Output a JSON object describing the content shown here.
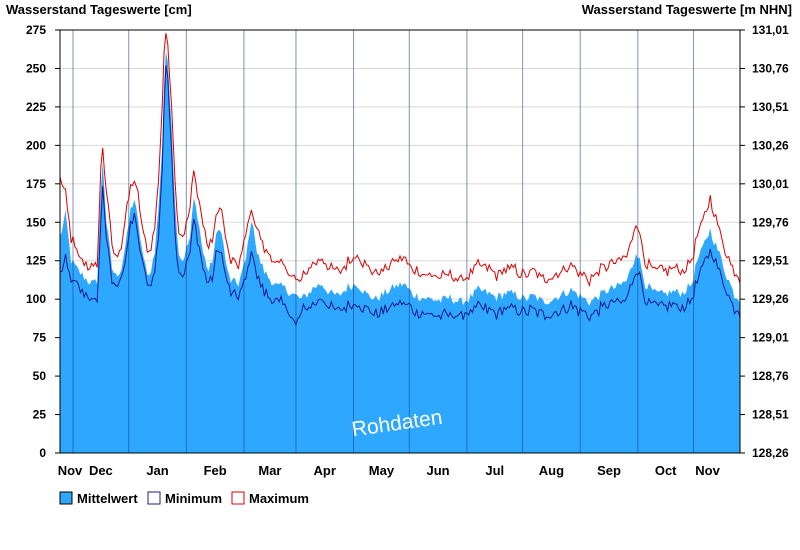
{
  "chart_data": {
    "type": "area",
    "left_axis_title": "Wasserstand Tageswerte [cm]",
    "right_axis_title": "Wasserstand Tageswerte [m NHN]",
    "ylim": [
      0,
      275
    ],
    "y_ticks": [
      0,
      25,
      50,
      75,
      100,
      125,
      150,
      175,
      200,
      225,
      250,
      275
    ],
    "right_ticks": [
      "128,26",
      "128,51",
      "128,76",
      "129,01",
      "129,26",
      "129,51",
      "129,76",
      "130,01",
      "130,26",
      "130,51",
      "130,76",
      "131,01"
    ],
    "months": [
      "Nov",
      "Dec",
      "Jan",
      "Feb",
      "Mar",
      "Apr",
      "May",
      "Jun",
      "Jul",
      "Aug",
      "Sep",
      "Oct",
      "Nov"
    ],
    "x_unit": "day",
    "x_range": [
      0,
      366
    ],
    "watermark": "Rohdaten",
    "grid": true,
    "legend_position": "bottom-left",
    "legend": [
      {
        "key": "mean",
        "label": "Mittelwert",
        "color": "#2ea8ff"
      },
      {
        "key": "min",
        "label": "Minimum",
        "color": "#1a1a8c"
      },
      {
        "key": "max",
        "label": "Maximum",
        "color": "#dd0000"
      }
    ],
    "series_keypoints": {
      "mean": [
        [
          0,
          140
        ],
        [
          3,
          155
        ],
        [
          6,
          125
        ],
        [
          10,
          118
        ],
        [
          15,
          112
        ],
        [
          18,
          110
        ],
        [
          20,
          112
        ],
        [
          22,
          170
        ],
        [
          23,
          190
        ],
        [
          25,
          150
        ],
        [
          28,
          120
        ],
        [
          30,
          115
        ],
        [
          33,
          120
        ],
        [
          36,
          140
        ],
        [
          38,
          158
        ],
        [
          40,
          165
        ],
        [
          42,
          150
        ],
        [
          45,
          125
        ],
        [
          48,
          115
        ],
        [
          51,
          130
        ],
        [
          53,
          160
        ],
        [
          55,
          200
        ],
        [
          56,
          240
        ],
        [
          57,
          258
        ],
        [
          58,
          255
        ],
        [
          60,
          215
        ],
        [
          62,
          160
        ],
        [
          64,
          130
        ],
        [
          66,
          125
        ],
        [
          70,
          140
        ],
        [
          72,
          165
        ],
        [
          74,
          155
        ],
        [
          77,
          130
        ],
        [
          80,
          118
        ],
        [
          82,
          125
        ],
        [
          84,
          140
        ],
        [
          86,
          148
        ],
        [
          88,
          135
        ],
        [
          90,
          118
        ],
        [
          92,
          112
        ],
        [
          96,
          110
        ],
        [
          100,
          125
        ],
        [
          102,
          145
        ],
        [
          104,
          150
        ],
        [
          106,
          130
        ],
        [
          110,
          118
        ],
        [
          113,
          113
        ],
        [
          117,
          108
        ],
        [
          120,
          108
        ],
        [
          123,
          105
        ],
        [
          127,
          102
        ],
        [
          130,
          100
        ],
        [
          133,
          103
        ],
        [
          137,
          108
        ],
        [
          141,
          110
        ],
        [
          145,
          104
        ],
        [
          150,
          102
        ],
        [
          155,
          108
        ],
        [
          160,
          110
        ],
        [
          165,
          103
        ],
        [
          170,
          100
        ],
        [
          175,
          104
        ],
        [
          180,
          108
        ],
        [
          185,
          110
        ],
        [
          190,
          103
        ],
        [
          195,
          101
        ],
        [
          200,
          100
        ],
        [
          205,
          99
        ],
        [
          210,
          101
        ],
        [
          215,
          98
        ],
        [
          220,
          100
        ],
        [
          225,
          106
        ],
        [
          230,
          104
        ],
        [
          235,
          101
        ],
        [
          240,
          104
        ],
        [
          245,
          103
        ],
        [
          250,
          100
        ],
        [
          255,
          102
        ],
        [
          260,
          98
        ],
        [
          265,
          100
        ],
        [
          270,
          103
        ],
        [
          275,
          106
        ],
        [
          280,
          102
        ],
        [
          285,
          98
        ],
        [
          290,
          102
        ],
        [
          295,
          106
        ],
        [
          300,
          108
        ],
        [
          305,
          112
        ],
        [
          309,
          125
        ],
        [
          310,
          132
        ],
        [
          312,
          125
        ],
        [
          315,
          110
        ],
        [
          320,
          104
        ],
        [
          325,
          103
        ],
        [
          330,
          105
        ],
        [
          335,
          104
        ],
        [
          340,
          110
        ],
        [
          343,
          125
        ],
        [
          345,
          130
        ],
        [
          348,
          140
        ],
        [
          350,
          145
        ],
        [
          352,
          138
        ],
        [
          354,
          132
        ],
        [
          356,
          126
        ],
        [
          358,
          118
        ],
        [
          360,
          112
        ],
        [
          363,
          103
        ],
        [
          366,
          100
        ]
      ],
      "min": [
        [
          0,
          118
        ],
        [
          3,
          125
        ],
        [
          6,
          112
        ],
        [
          10,
          108
        ],
        [
          15,
          102
        ],
        [
          18,
          98
        ],
        [
          20,
          100
        ],
        [
          22,
          150
        ],
        [
          23,
          175
        ],
        [
          25,
          140
        ],
        [
          28,
          112
        ],
        [
          30,
          108
        ],
        [
          33,
          115
        ],
        [
          36,
          130
        ],
        [
          38,
          148
        ],
        [
          40,
          155
        ],
        [
          42,
          140
        ],
        [
          45,
          120
        ],
        [
          48,
          108
        ],
        [
          51,
          118
        ],
        [
          53,
          140
        ],
        [
          55,
          185
        ],
        [
          56,
          225
        ],
        [
          57,
          250
        ],
        [
          58,
          245
        ],
        [
          60,
          200
        ],
        [
          62,
          140
        ],
        [
          64,
          118
        ],
        [
          66,
          115
        ],
        [
          70,
          130
        ],
        [
          72,
          150
        ],
        [
          74,
          140
        ],
        [
          77,
          120
        ],
        [
          80,
          110
        ],
        [
          82,
          115
        ],
        [
          84,
          128
        ],
        [
          86,
          135
        ],
        [
          88,
          122
        ],
        [
          90,
          110
        ],
        [
          92,
          104
        ],
        [
          96,
          102
        ],
        [
          100,
          112
        ],
        [
          102,
          125
        ],
        [
          104,
          130
        ],
        [
          106,
          115
        ],
        [
          110,
          105
        ],
        [
          113,
          100
        ],
        [
          117,
          98
        ],
        [
          120,
          97
        ],
        [
          123,
          94
        ],
        [
          127,
          82
        ],
        [
          130,
          92
        ],
        [
          133,
          95
        ],
        [
          137,
          98
        ],
        [
          141,
          100
        ],
        [
          145,
          95
        ],
        [
          150,
          92
        ],
        [
          155,
          96
        ],
        [
          160,
          98
        ],
        [
          165,
          93
        ],
        [
          170,
          90
        ],
        [
          175,
          93
        ],
        [
          180,
          96
        ],
        [
          185,
          97
        ],
        [
          190,
          93
        ],
        [
          195,
          91
        ],
        [
          200,
          90
        ],
        [
          205,
          89
        ],
        [
          210,
          90
        ],
        [
          215,
          89
        ],
        [
          220,
          91
        ],
        [
          225,
          94
        ],
        [
          230,
          93
        ],
        [
          235,
          90
        ],
        [
          240,
          94
        ],
        [
          245,
          93
        ],
        [
          250,
          91
        ],
        [
          255,
          93
        ],
        [
          260,
          89
        ],
        [
          265,
          91
        ],
        [
          270,
          93
        ],
        [
          275,
          96
        ],
        [
          280,
          92
        ],
        [
          285,
          89
        ],
        [
          290,
          93
        ],
        [
          295,
          96
        ],
        [
          300,
          98
        ],
        [
          305,
          100
        ],
        [
          309,
          115
        ],
        [
          310,
          120
        ],
        [
          312,
          115
        ],
        [
          315,
          100
        ],
        [
          320,
          95
        ],
        [
          325,
          94
        ],
        [
          330,
          96
        ],
        [
          335,
          95
        ],
        [
          340,
          100
        ],
        [
          343,
          112
        ],
        [
          345,
          118
        ],
        [
          348,
          128
        ],
        [
          350,
          132
        ],
        [
          352,
          128
        ],
        [
          354,
          120
        ],
        [
          356,
          115
        ],
        [
          358,
          108
        ],
        [
          360,
          102
        ],
        [
          363,
          94
        ],
        [
          366,
          92
        ]
      ],
      "max": [
        [
          0,
          178
        ],
        [
          3,
          168
        ],
        [
          6,
          140
        ],
        [
          10,
          128
        ],
        [
          15,
          122
        ],
        [
          18,
          120
        ],
        [
          20,
          122
        ],
        [
          22,
          185
        ],
        [
          23,
          199
        ],
        [
          25,
          170
        ],
        [
          28,
          135
        ],
        [
          30,
          128
        ],
        [
          33,
          135
        ],
        [
          36,
          158
        ],
        [
          38,
          172
        ],
        [
          40,
          177
        ],
        [
          42,
          168
        ],
        [
          45,
          142
        ],
        [
          48,
          130
        ],
        [
          51,
          148
        ],
        [
          53,
          178
        ],
        [
          55,
          225
        ],
        [
          56,
          260
        ],
        [
          57,
          270
        ],
        [
          58,
          266
        ],
        [
          60,
          230
        ],
        [
          62,
          175
        ],
        [
          64,
          145
        ],
        [
          66,
          140
        ],
        [
          70,
          160
        ],
        [
          72,
          183
        ],
        [
          74,
          170
        ],
        [
          77,
          148
        ],
        [
          80,
          133
        ],
        [
          82,
          140
        ],
        [
          84,
          152
        ],
        [
          86,
          162
        ],
        [
          88,
          150
        ],
        [
          90,
          132
        ],
        [
          92,
          125
        ],
        [
          96,
          122
        ],
        [
          100,
          140
        ],
        [
          102,
          157
        ],
        [
          104,
          156
        ],
        [
          106,
          145
        ],
        [
          110,
          133
        ],
        [
          113,
          128
        ],
        [
          117,
          122
        ],
        [
          120,
          122
        ],
        [
          123,
          118
        ],
        [
          127,
          112
        ],
        [
          130,
          113
        ],
        [
          133,
          118
        ],
        [
          137,
          124
        ],
        [
          141,
          128
        ],
        [
          145,
          120
        ],
        [
          150,
          118
        ],
        [
          155,
          124
        ],
        [
          160,
          130
        ],
        [
          165,
          120
        ],
        [
          170,
          116
        ],
        [
          175,
          120
        ],
        [
          180,
          125
        ],
        [
          185,
          126
        ],
        [
          190,
          119
        ],
        [
          195,
          117
        ],
        [
          200,
          115
        ],
        [
          205,
          114
        ],
        [
          210,
          116
        ],
        [
          215,
          113
        ],
        [
          220,
          115
        ],
        [
          225,
          122
        ],
        [
          230,
          120
        ],
        [
          235,
          116
        ],
        [
          240,
          120
        ],
        [
          245,
          119
        ],
        [
          250,
          115
        ],
        [
          255,
          118
        ],
        [
          260,
          113
        ],
        [
          265,
          115
        ],
        [
          270,
          118
        ],
        [
          275,
          122
        ],
        [
          280,
          117
        ],
        [
          285,
          113
        ],
        [
          290,
          118
        ],
        [
          295,
          122
        ],
        [
          300,
          124
        ],
        [
          305,
          128
        ],
        [
          309,
          145
        ],
        [
          310,
          151
        ],
        [
          312,
          142
        ],
        [
          315,
          125
        ],
        [
          320,
          119
        ],
        [
          325,
          118
        ],
        [
          330,
          120
        ],
        [
          335,
          119
        ],
        [
          340,
          125
        ],
        [
          343,
          140
        ],
        [
          345,
          147
        ],
        [
          348,
          158
        ],
        [
          350,
          165
        ],
        [
          352,
          156
        ],
        [
          354,
          150
        ],
        [
          356,
          140
        ],
        [
          358,
          132
        ],
        [
          360,
          126
        ],
        [
          363,
          118
        ],
        [
          366,
          113
        ]
      ]
    }
  }
}
